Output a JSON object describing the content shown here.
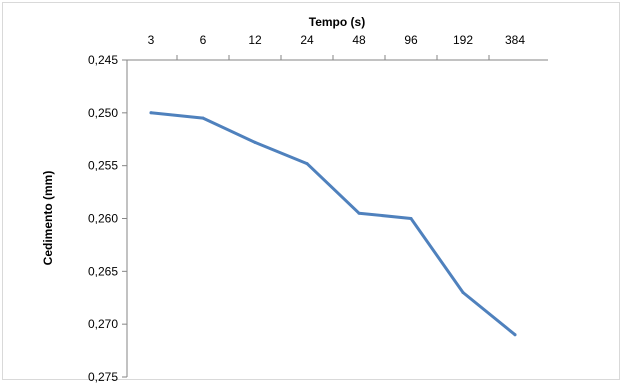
{
  "chart_data": {
    "type": "line",
    "title": "",
    "xlabel": "Tempo (s)",
    "ylabel": "Cedimento (mm)",
    "x_axis_position": "top",
    "y_axis_reversed": true,
    "categories": [
      "3",
      "6",
      "12",
      "24",
      "48",
      "96",
      "192",
      "384"
    ],
    "y_ticks": [
      "0,245",
      "0,250",
      "0,255",
      "0,260",
      "0,265",
      "0,270",
      "0,275"
    ],
    "ylim": [
      0.245,
      0.275
    ],
    "grid": false,
    "legend": "none",
    "series": [
      {
        "color": "#4f81bd",
        "values": [
          0.25,
          0.2505,
          0.2528,
          0.2548,
          0.2595,
          0.26,
          0.267,
          0.271
        ]
      }
    ]
  }
}
